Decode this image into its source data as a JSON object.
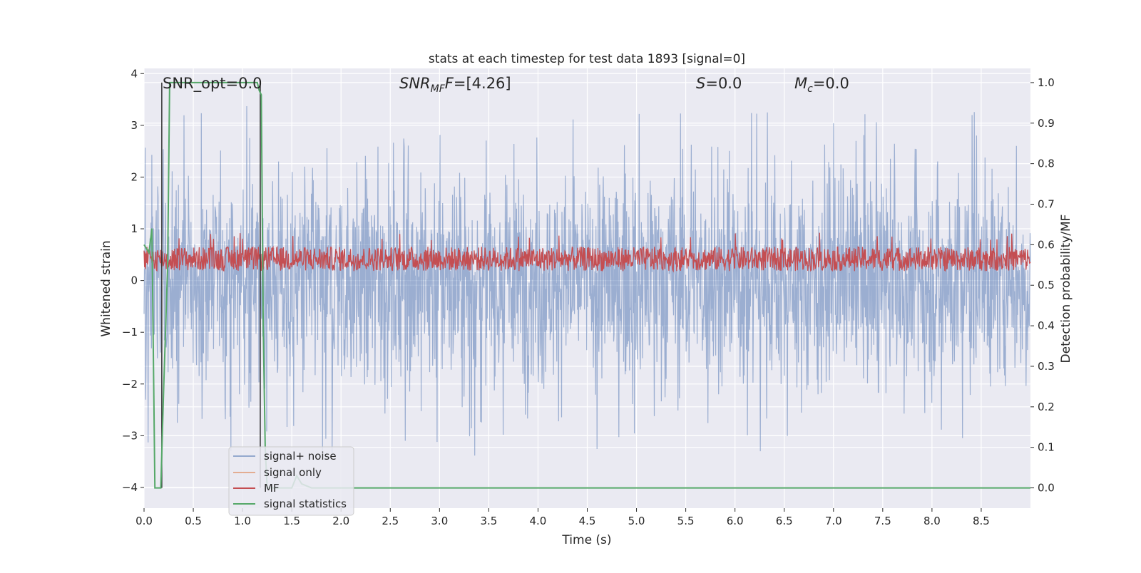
{
  "chart_data": {
    "type": "line",
    "title": "stats at each timestep for test data 1893 [signal=0]",
    "xlabel": "Time (s)",
    "ylabel_left": "Whitened strain",
    "ylabel_right": "Detection probability/MF",
    "xlim": [
      0.0,
      9.0
    ],
    "ylim_left": [
      -4.4,
      4.1
    ],
    "ylim_right": [
      -0.05,
      1.035
    ],
    "x_ticks": [
      0.0,
      0.5,
      1.0,
      1.5,
      2.0,
      2.5,
      3.0,
      3.5,
      4.0,
      4.5,
      5.0,
      5.5,
      6.0,
      6.5,
      7.0,
      7.5,
      8.0,
      8.5
    ],
    "x_tick_labels": [
      "0.0",
      "0.5",
      "1.0",
      "1.5",
      "2.0",
      "2.5",
      "3.0",
      "3.5",
      "4.0",
      "4.5",
      "5.0",
      "5.5",
      "6.0",
      "6.5",
      "7.0",
      "7.5",
      "8.0",
      "8.5"
    ],
    "y_ticks_left": [
      -4,
      -3,
      -2,
      -1,
      0,
      1,
      2,
      3,
      4
    ],
    "y_tick_labels_left": [
      "−4",
      "−3",
      "−2",
      "−1",
      "0",
      "1",
      "2",
      "3",
      "4"
    ],
    "y_ticks_right": [
      0.0,
      0.1,
      0.2,
      0.3,
      0.4,
      0.5,
      0.6,
      0.7,
      0.8,
      0.9,
      1.0
    ],
    "y_tick_labels_right": [
      "0.0",
      "0.1",
      "0.2",
      "0.3",
      "0.4",
      "0.5",
      "0.6",
      "0.7",
      "0.8",
      "0.9",
      "1.0"
    ],
    "grid": true,
    "legend_placement": "lower-left",
    "annotations": {
      "snr_opt": "SNR_opt=0.0",
      "snr_mf_main": "SNR",
      "snr_mf_sub": "MF",
      "snr_mf_value": "=[4.26]",
      "s_main": "S",
      "s_value": "=0.0",
      "mc_main": "M",
      "mc_sub": "c",
      "mc_value": "=0.0"
    },
    "series": [
      {
        "name": "signal+ noise",
        "axis": "left",
        "color": "#4c72b0",
        "sampled_envelope": {
          "typical_range": [
            -2.0,
            2.0
          ],
          "peaks": [
            3.7,
            -4.0
          ]
        }
      },
      {
        "name": "signal only",
        "axis": "left",
        "color": "#dd8452",
        "values_note": "flat zero"
      },
      {
        "name": "MF",
        "axis": "right",
        "color": "#c44e52",
        "typical_range": [
          0.52,
          0.61
        ]
      },
      {
        "name": "signal statistics",
        "axis": "right",
        "color": "#55a868",
        "x": [
          0.0,
          0.05,
          0.08,
          0.11,
          0.17,
          0.2,
          0.24,
          0.26,
          0.4,
          0.8,
          1.1,
          1.15,
          1.17,
          1.19,
          1.21,
          1.23,
          1.25,
          1.3,
          1.5,
          1.55,
          1.6,
          1.7,
          9.0
        ],
        "y": [
          0.6,
          0.58,
          0.64,
          0.0,
          0.0,
          0.25,
          0.55,
          1.0,
          1.0,
          1.0,
          1.0,
          1.0,
          0.98,
          0.97,
          0.4,
          0.1,
          0.0,
          0.0,
          0.0,
          0.03,
          0.01,
          0.0,
          0.0
        ]
      }
    ],
    "markers": [
      {
        "x": 0.18,
        "y_range": [
          0.0,
          1.0
        ]
      },
      {
        "x": 1.18,
        "y_range": [
          0.0,
          1.0
        ]
      }
    ]
  }
}
